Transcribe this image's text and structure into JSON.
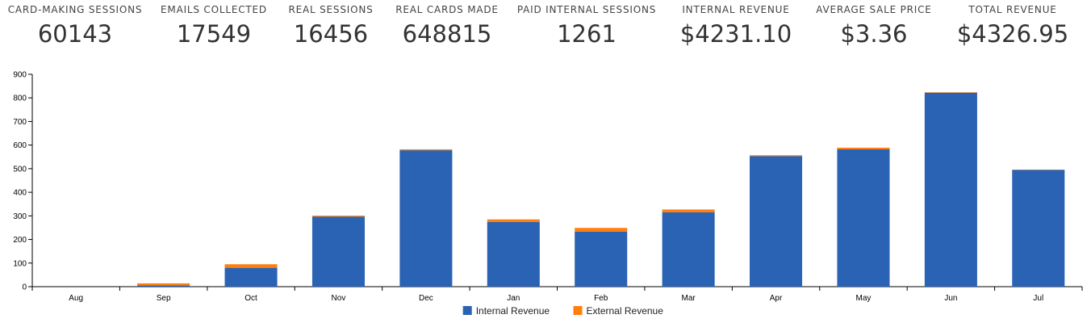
{
  "stats": [
    {
      "label": "CARD-MAKING SESSIONS",
      "value": "60143"
    },
    {
      "label": "EMAILS COLLECTED",
      "value": "17549"
    },
    {
      "label": "REAL SESSIONS",
      "value": "16456"
    },
    {
      "label": "REAL CARDS MADE",
      "value": "648815"
    },
    {
      "label": "PAID INTERNAL SESSIONS",
      "value": "1261"
    },
    {
      "label": "INTERNAL REVENUE",
      "value": "$4231.10"
    },
    {
      "label": "AVERAGE SALE PRICE",
      "value": "$3.36"
    },
    {
      "label": "TOTAL REVENUE",
      "value": "$4326.95"
    }
  ],
  "chart_data": {
    "type": "bar",
    "stacked": true,
    "categories": [
      "Aug",
      "Sep",
      "Oct",
      "Nov",
      "Dec",
      "Jan",
      "Feb",
      "Mar",
      "Apr",
      "May",
      "Jun",
      "Jul"
    ],
    "series": [
      {
        "name": "Internal Revenue",
        "color": "#2a63b4",
        "values": [
          0,
          5,
          80,
          297,
          578,
          274,
          233,
          315,
          553,
          582,
          822,
          495
        ]
      },
      {
        "name": "External Revenue",
        "color": "#ff7f0e",
        "values": [
          0,
          9,
          15,
          4,
          4,
          11,
          16,
          12,
          4,
          7,
          2,
          1
        ]
      }
    ],
    "ylim": [
      0,
      900
    ],
    "yticks": [
      0,
      100,
      200,
      300,
      400,
      500,
      600,
      700,
      800,
      900
    ],
    "legend_position": "bottom-center",
    "grid": false
  }
}
